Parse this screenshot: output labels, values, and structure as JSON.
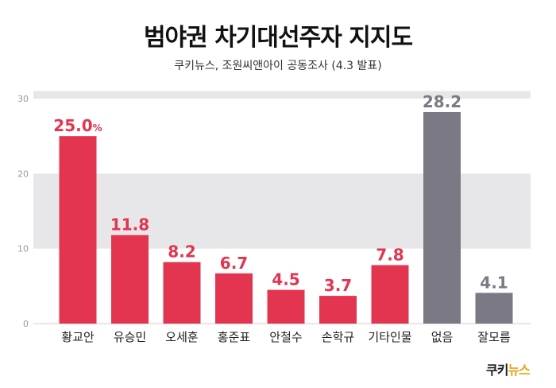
{
  "title": "범야권 차기대선주자 지지도",
  "subtitle": "쿠키뉴스, 조원씨앤아이 공동조사 (4.3 발표)",
  "logo": {
    "part1": "쿠키",
    "part2": "뉴스"
  },
  "colors": {
    "primary": "#e3354f",
    "secondary": "#7b7a84",
    "band": "#e7e7e9"
  },
  "chart_data": {
    "type": "bar",
    "categories": [
      "황교안",
      "유승민",
      "오세훈",
      "홍준표",
      "안철수",
      "손학규",
      "기타인물",
      "없음",
      "잘모름"
    ],
    "values": [
      25.0,
      11.8,
      8.2,
      6.7,
      4.5,
      3.7,
      7.8,
      28.2,
      4.1
    ],
    "value_labels": [
      "25.0",
      "11.8",
      "8.2",
      "6.7",
      "4.5",
      "3.7",
      "7.8",
      "28.2",
      "4.1"
    ],
    "unit_on_first": "%",
    "bar_colors": [
      "primary",
      "primary",
      "primary",
      "primary",
      "primary",
      "primary",
      "primary",
      "secondary",
      "secondary"
    ],
    "yticks": [
      0,
      10,
      20,
      30
    ],
    "ylim": [
      0,
      30
    ],
    "grid_bands": [
      [
        10,
        20
      ],
      [
        30,
        31
      ]
    ]
  }
}
